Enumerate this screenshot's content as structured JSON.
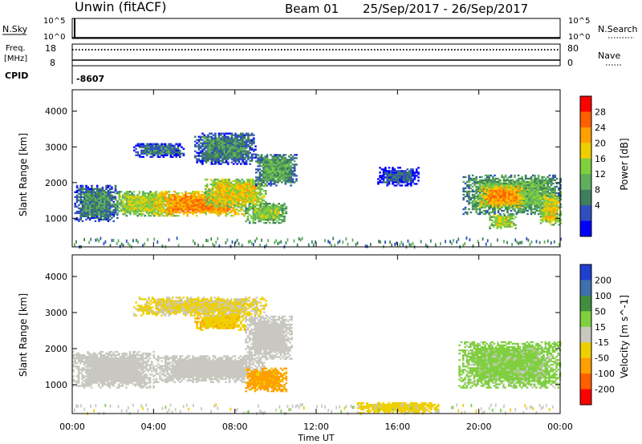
{
  "header": {
    "station": "Unwin (fitACF)",
    "beam": "Beam 01",
    "date_range": "25/Sep/2017 - 26/Sep/2017"
  },
  "top_panels": {
    "nsky_label": "N.Sky",
    "nsky_ticks": [
      "10^5",
      "10^0"
    ],
    "nsearch_label": "N.Search",
    "nsearch_ticks": [
      "10^5",
      "10^0"
    ],
    "freq_label": "Freq.",
    "freq_unit": "[MHz]",
    "freq_ticks": [
      "18",
      "8"
    ],
    "nave_label": "Nave",
    "nave_ticks": [
      "80",
      "0"
    ],
    "cpid_label": "CPID",
    "cpid_value": "-8607"
  },
  "time_axis": {
    "label": "Time UT",
    "ticks": [
      "00:00",
      "04:00",
      "08:00",
      "12:00",
      "16:00",
      "20:00",
      "00:00"
    ]
  },
  "colors": {
    "power_scale": [
      "#0000ff",
      "#2f4fbf",
      "#3f7f5f",
      "#5faf5f",
      "#7fcf3f",
      "#efcf00",
      "#ff9f00",
      "#ff5f00",
      "#ff0000"
    ],
    "velocity_scale": [
      "#1f3fcf",
      "#3f6faf",
      "#3f8f3f",
      "#7fcf3f",
      "#c8c8c0",
      "#efcf00",
      "#ff9f00",
      "#ff5f00",
      "#ff0000"
    ]
  },
  "chart_data": [
    {
      "type": "heatmap",
      "name": "power",
      "ylabel": "Slant Range [km]",
      "yticks": [
        1000,
        2000,
        3000,
        4000
      ],
      "ylim": [
        200,
        4600
      ],
      "xlim_hours": [
        0,
        24
      ],
      "colorbar_label": "Power [dB]",
      "colorbar_ticks": [
        4,
        8,
        12,
        16,
        20,
        24,
        28
      ],
      "colorbar_range": [
        0,
        32
      ],
      "echo_regions": [
        {
          "t0": 0.1,
          "t1": 2.2,
          "r0": 900,
          "r1": 1900,
          "level": 10
        },
        {
          "t0": 2.0,
          "t1": 5.0,
          "r0": 1050,
          "r1": 1750,
          "level": 18
        },
        {
          "t0": 4.0,
          "t1": 8.5,
          "r0": 1050,
          "r1": 1750,
          "level": 24
        },
        {
          "t0": 6.5,
          "t1": 9.5,
          "r0": 1300,
          "r1": 2100,
          "level": 20
        },
        {
          "t0": 9.0,
          "t1": 11.0,
          "r0": 1900,
          "r1": 2800,
          "level": 12
        },
        {
          "t0": 8.5,
          "t1": 10.5,
          "r0": 850,
          "r1": 1400,
          "level": 16
        },
        {
          "t0": 3.0,
          "t1": 5.5,
          "r0": 2700,
          "r1": 3100,
          "level": 8
        },
        {
          "t0": 6.0,
          "t1": 9.0,
          "r0": 2500,
          "r1": 3400,
          "level": 10
        },
        {
          "t0": 15.0,
          "t1": 17.0,
          "r0": 1900,
          "r1": 2400,
          "level": 6
        },
        {
          "t0": 19.2,
          "t1": 24.0,
          "r0": 1100,
          "r1": 2200,
          "level": 14
        },
        {
          "t0": 20.0,
          "t1": 22.2,
          "r0": 1300,
          "r1": 1900,
          "level": 24
        },
        {
          "t0": 20.5,
          "t1": 21.8,
          "r0": 700,
          "r1": 1100,
          "level": 18
        },
        {
          "t0": 23.0,
          "t1": 24.0,
          "r0": 800,
          "r1": 1700,
          "level": 20
        }
      ]
    },
    {
      "type": "heatmap",
      "name": "velocity",
      "ylabel": "Slant Range [km]",
      "yticks": [
        1000,
        2000,
        3000,
        4000
      ],
      "ylim": [
        200,
        4600
      ],
      "xlim_hours": [
        0,
        24
      ],
      "colorbar_label": "Velocity [m s^-1]",
      "colorbar_ticks": [
        200,
        100,
        50,
        15,
        -15,
        -50,
        -100,
        -200
      ],
      "colorbar_range": [
        -250,
        250
      ],
      "echo_regions": [
        {
          "t0": 0.0,
          "t1": 4.0,
          "r0": 900,
          "r1": 1900,
          "level": 0
        },
        {
          "t0": 4.0,
          "t1": 9.5,
          "r0": 1050,
          "r1": 1800,
          "level": 0
        },
        {
          "t0": 8.5,
          "t1": 10.8,
          "r0": 1700,
          "r1": 2900,
          "level": 0
        },
        {
          "t0": 8.5,
          "t1": 10.5,
          "r0": 800,
          "r1": 1450,
          "level": -60
        },
        {
          "t0": 6.0,
          "t1": 8.5,
          "r0": 2500,
          "r1": 3000,
          "level": -40
        },
        {
          "t0": 3.0,
          "t1": 9.5,
          "r0": 2900,
          "r1": 3400,
          "level": -20
        },
        {
          "t0": 19.0,
          "t1": 24.0,
          "r0": 900,
          "r1": 2200,
          "level": 25
        },
        {
          "t0": 14.0,
          "t1": 18.0,
          "r0": 200,
          "r1": 500,
          "level": -30
        }
      ]
    }
  ]
}
